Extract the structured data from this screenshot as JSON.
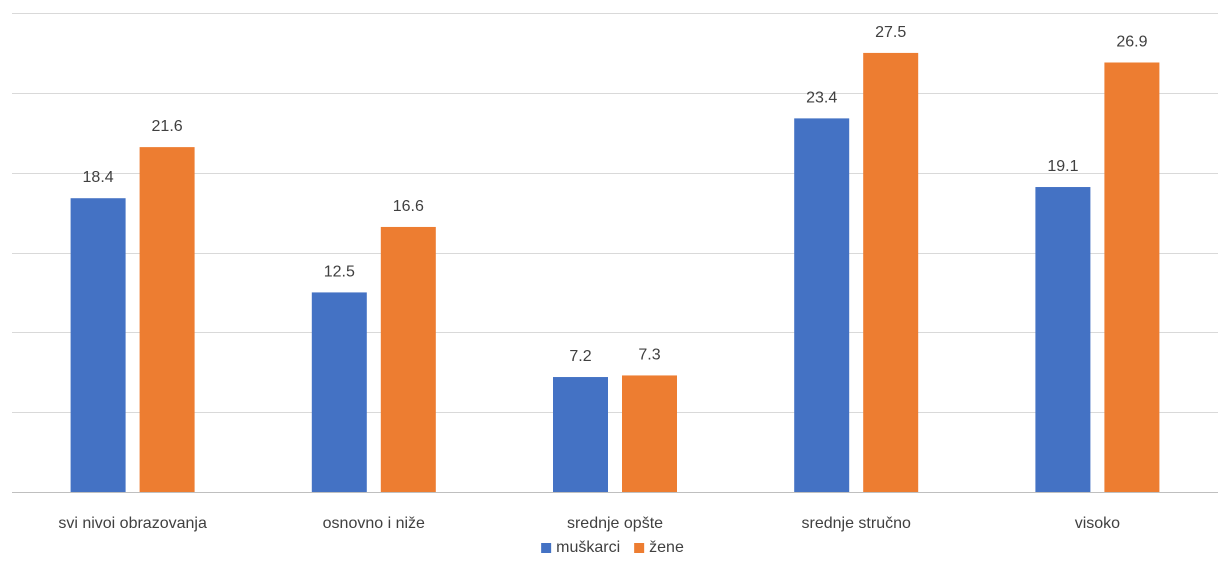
{
  "chart_data": {
    "type": "bar",
    "title": "",
    "xlabel": "",
    "ylabel": "",
    "ylim": [
      0,
      30
    ],
    "grid": true,
    "legend_position": "bottom",
    "categories": [
      "svi nivoi obrazovanja",
      "osnovno i niže",
      "srednje opšte",
      "srednje stručno",
      "visoko"
    ],
    "series": [
      {
        "name": "muškarci",
        "color": "#4472c4",
        "values": [
          18.4,
          12.5,
          7.2,
          23.4,
          19.1
        ],
        "labels": [
          "18.4",
          "12.5",
          "7.2",
          "23.4",
          "19.1"
        ]
      },
      {
        "name": "žene",
        "color": "#ed7d31",
        "values": [
          21.6,
          16.6,
          7.3,
          27.5,
          26.9
        ],
        "labels": [
          "21.6",
          "16.6",
          "7.3",
          "27.5",
          "26.9"
        ]
      }
    ]
  }
}
